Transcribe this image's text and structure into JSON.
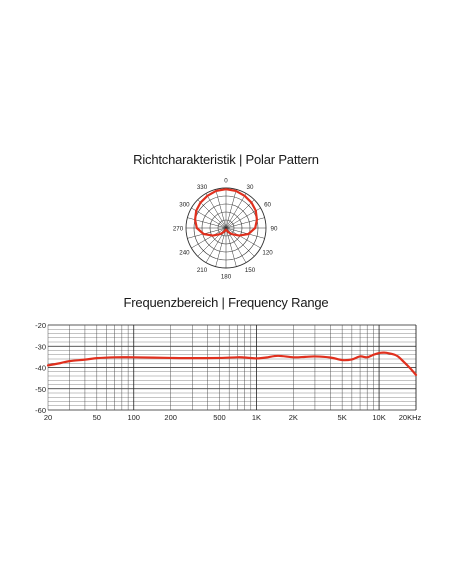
{
  "chart_data": [
    {
      "type": "polar",
      "title": "Richtcharakteristik | Polar Pattern",
      "angle_labels": [
        "0",
        "30",
        "60",
        "90",
        "120",
        "150",
        "180",
        "210",
        "240",
        "270",
        "300",
        "330"
      ],
      "angles_deg": [
        0,
        30,
        60,
        90,
        120,
        150,
        180,
        210,
        240,
        270,
        300,
        330
      ],
      "rings": 5,
      "series": [
        {
          "color": "#e0301e",
          "points": [
            {
              "angle": 0,
              "value": 0.97
            },
            {
              "angle": 15,
              "value": 0.96
            },
            {
              "angle": 30,
              "value": 0.93
            },
            {
              "angle": 45,
              "value": 0.9
            },
            {
              "angle": 60,
              "value": 0.86
            },
            {
              "angle": 75,
              "value": 0.8
            },
            {
              "angle": 90,
              "value": 0.73
            },
            {
              "angle": 105,
              "value": 0.58
            },
            {
              "angle": 120,
              "value": 0.38
            },
            {
              "angle": 135,
              "value": 0.22
            },
            {
              "angle": 150,
              "value": 0.12
            },
            {
              "angle": 165,
              "value": 0.06
            },
            {
              "angle": 180,
              "value": 0.04
            },
            {
              "angle": 195,
              "value": 0.06
            },
            {
              "angle": 210,
              "value": 0.12
            },
            {
              "angle": 225,
              "value": 0.22
            },
            {
              "angle": 240,
              "value": 0.38
            },
            {
              "angle": 255,
              "value": 0.58
            },
            {
              "angle": 270,
              "value": 0.73
            },
            {
              "angle": 285,
              "value": 0.8
            },
            {
              "angle": 300,
              "value": 0.86
            },
            {
              "angle": 315,
              "value": 0.9
            },
            {
              "angle": 330,
              "value": 0.93
            },
            {
              "angle": 345,
              "value": 0.96
            }
          ]
        }
      ]
    },
    {
      "type": "line",
      "title": "Frequenzbereich | Frequency Range",
      "xscale": "log",
      "xlim": [
        20,
        20000
      ],
      "ylim": [
        -60,
        -20
      ],
      "x_tick_values": [
        20,
        50,
        100,
        200,
        500,
        1000,
        2000,
        5000,
        10000,
        20000
      ],
      "x_tick_labels": [
        "20",
        "50",
        "100",
        "200",
        "500",
        "1K",
        "2K",
        "5K",
        "10K",
        "20KHz"
      ],
      "y_tick_values": [
        -20,
        -30,
        -40,
        -50,
        -60
      ],
      "y_tick_labels": [
        "-20",
        "-30",
        "-40",
        "-50",
        "-60"
      ],
      "grid": true,
      "series": [
        {
          "color": "#e0301e",
          "x": [
            20,
            25,
            30,
            40,
            50,
            70,
            100,
            200,
            300,
            500,
            700,
            800,
            1000,
            1200,
            1500,
            2000,
            2500,
            3000,
            4000,
            5000,
            6000,
            7000,
            8000,
            9000,
            10000,
            11000,
            12000,
            14000,
            16000,
            18000,
            20000
          ],
          "y": [
            -39,
            -38,
            -37,
            -36.3,
            -35.6,
            -35.2,
            -35.2,
            -35.5,
            -35.6,
            -35.5,
            -35.2,
            -35.3,
            -35.7,
            -35.3,
            -34.5,
            -35.2,
            -35,
            -34.8,
            -35.3,
            -36.5,
            -36.2,
            -34.8,
            -35.2,
            -34,
            -33.2,
            -33,
            -33.3,
            -34.5,
            -37.5,
            -40.5,
            -43.5
          ]
        }
      ]
    }
  ]
}
